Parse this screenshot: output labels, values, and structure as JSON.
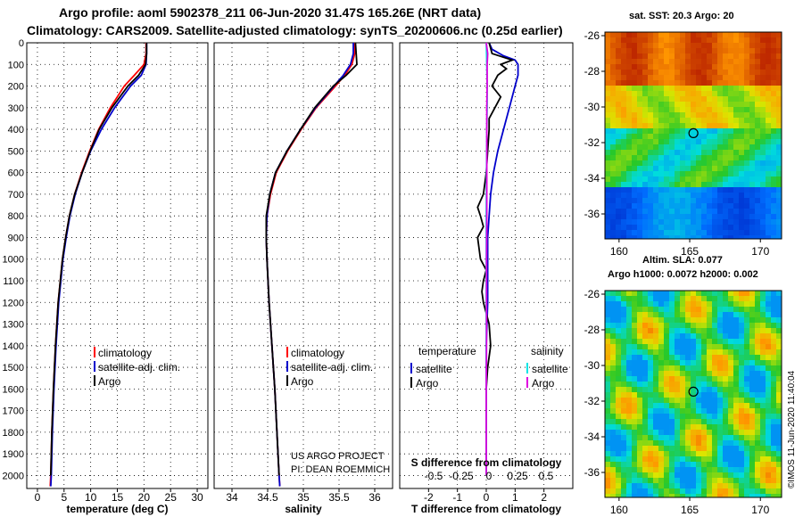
{
  "header": {
    "line1": "Argo profile: aoml 5902378_211 06-Jun-2020 31.47S 165.26E (NRT data)",
    "line2": "Climatology: CARS2009. Satellite-adjusted climatology: synTS_20200606.nc (0.25d earlier)"
  },
  "colors": {
    "climatology": "#ff0000",
    "satellite": "#0000cc",
    "argo": "#000000",
    "sat_salinity": "#00e5e5",
    "argo_salinity": "#e000e0"
  },
  "chart_data": [
    {
      "type": "line",
      "title": "",
      "xlabel": "temperature (deg C)",
      "ylabel": "",
      "xlim": [
        -2,
        32
      ],
      "ylim": [
        2060,
        0
      ],
      "xticks": [
        0,
        5,
        10,
        15,
        20,
        25,
        30
      ],
      "yticks": [
        0,
        100,
        200,
        300,
        400,
        500,
        600,
        700,
        800,
        900,
        1000,
        1100,
        1200,
        1300,
        1400,
        1500,
        1600,
        1700,
        1800,
        1900,
        2000
      ],
      "grid": true,
      "legend": {
        "placement": "bottom-right",
        "items": [
          "climatology",
          "satellite-adj. clim.",
          "Argo"
        ]
      },
      "series": [
        {
          "name": "climatology",
          "color": "#ff0000",
          "depth": [
            0,
            50,
            100,
            150,
            200,
            300,
            400,
            500,
            600,
            700,
            800,
            900,
            1000,
            1200,
            1400,
            1600,
            1800,
            2000,
            2050
          ],
          "values": [
            20.4,
            20.4,
            20.0,
            18.2,
            16.3,
            13.7,
            11.5,
            9.8,
            8.3,
            7.0,
            6.0,
            5.3,
            4.7,
            3.9,
            3.4,
            3.0,
            2.7,
            2.5,
            2.4
          ]
        },
        {
          "name": "satellite-adj. clim.",
          "color": "#0000cc",
          "depth": [
            0,
            50,
            100,
            150,
            200,
            300,
            400,
            500,
            600,
            700,
            800,
            900,
            1000,
            1200,
            1400,
            1600,
            1800,
            2000,
            2050
          ],
          "values": [
            20.5,
            20.5,
            20.4,
            19.5,
            17.5,
            14.5,
            12.0,
            10.0,
            8.4,
            7.1,
            6.1,
            5.4,
            4.8,
            4.0,
            3.5,
            3.1,
            2.8,
            2.6,
            2.5
          ]
        },
        {
          "name": "Argo",
          "color": "#000000",
          "depth": [
            0,
            50,
            100,
            150,
            200,
            300,
            400,
            500,
            600,
            700,
            800,
            900,
            1000,
            1200,
            1400,
            1600,
            1800,
            2000
          ],
          "values": [
            20.5,
            20.5,
            20.3,
            19.0,
            17.0,
            14.0,
            11.6,
            9.9,
            8.4,
            7.0,
            6.0,
            5.3,
            4.7,
            3.9,
            3.4,
            3.0,
            2.7,
            2.5
          ]
        }
      ]
    },
    {
      "type": "line",
      "title": "",
      "xlabel": "salinity",
      "ylabel": "",
      "xlim": [
        33.75,
        36.25
      ],
      "ylim": [
        2060,
        0
      ],
      "xticks": [
        34,
        34.5,
        35,
        35.5,
        36
      ],
      "grid": true,
      "legend": {
        "placement": "bottom-right",
        "items": [
          "climatology",
          "satellite-adj. clim.",
          "Argo"
        ]
      },
      "annotations": [
        "US ARGO PROJECT",
        "PI: DEAN ROEMMICH"
      ],
      "series": [
        {
          "name": "climatology",
          "color": "#ff0000",
          "depth": [
            0,
            50,
            100,
            150,
            200,
            300,
            400,
            500,
            600,
            700,
            800,
            900,
            1000,
            1200,
            1400,
            1600,
            1800,
            2000,
            2050
          ],
          "values": [
            35.72,
            35.72,
            35.68,
            35.58,
            35.45,
            35.18,
            34.97,
            34.78,
            34.62,
            34.54,
            34.49,
            34.48,
            34.49,
            34.52,
            34.56,
            34.6,
            34.63,
            34.66,
            34.67
          ]
        },
        {
          "name": "satellite-adj. clim.",
          "color": "#0000cc",
          "depth": [
            0,
            50,
            100,
            150,
            200,
            300,
            400,
            500,
            600,
            700,
            800,
            900,
            1000,
            1200,
            1400,
            1600,
            1800,
            2000,
            2050
          ],
          "values": [
            35.7,
            35.7,
            35.66,
            35.56,
            35.43,
            35.17,
            34.96,
            34.77,
            34.61,
            34.53,
            34.49,
            34.48,
            34.49,
            34.52,
            34.56,
            34.6,
            34.63,
            34.66,
            34.67
          ]
        },
        {
          "name": "Argo",
          "color": "#000000",
          "depth": [
            0,
            50,
            100,
            150,
            200,
            300,
            400,
            500,
            600,
            700,
            800,
            900,
            1000,
            1200,
            1400,
            1600,
            1800,
            2000
          ],
          "values": [
            35.73,
            35.74,
            35.75,
            35.6,
            35.42,
            35.16,
            34.96,
            34.77,
            34.61,
            34.53,
            34.48,
            34.48,
            34.49,
            34.52,
            34.56,
            34.6,
            34.63,
            34.66
          ]
        }
      ]
    },
    {
      "type": "line",
      "title": "",
      "xlabel": "T difference from climatology",
      "xlabel_top": "S difference from climatology",
      "xlim": [
        -3,
        3
      ],
      "xticks": [
        -2,
        -1,
        0,
        1,
        2
      ],
      "xticks_top": [
        "-0.5",
        "-0.25",
        "0",
        "0.25",
        "0.5"
      ],
      "ylim": [
        2060,
        0
      ],
      "grid": true,
      "legend": {
        "placement": "bottom",
        "temperature_heading": "temperature",
        "salinity_heading": "salinity",
        "items": [
          "satellite",
          "Argo",
          "satellite",
          "Argo"
        ]
      },
      "series": [
        {
          "name": "temperature satellite",
          "color": "#0000cc",
          "depth": [
            0,
            30,
            60,
            80,
            100,
            150,
            200,
            300,
            400,
            500,
            600,
            700,
            800,
            900,
            1000,
            1200,
            1400,
            1600,
            1800,
            2000
          ],
          "values": [
            0.1,
            0.2,
            0.6,
            1.0,
            1.1,
            1.1,
            1.0,
            0.8,
            0.6,
            0.4,
            0.25,
            0.15,
            0.1,
            0.05,
            0.05,
            0.05,
            0.0,
            0.0,
            0.0,
            0.0
          ]
        },
        {
          "name": "temperature Argo",
          "color": "#000000",
          "depth": [
            0,
            50,
            80,
            100,
            120,
            150,
            200,
            250,
            300,
            350,
            400,
            500,
            600,
            700,
            760,
            800,
            850,
            900,
            1000,
            1050,
            1100,
            1150,
            1200,
            1300,
            1400,
            1500,
            1600,
            1700,
            1800,
            1900,
            2000
          ],
          "values": [
            0.1,
            0.2,
            0.9,
            0.5,
            0.7,
            0.4,
            0.2,
            0.5,
            0.3,
            0.1,
            0.1,
            0.05,
            0.0,
            -0.1,
            -0.3,
            -0.2,
            -0.1,
            -0.3,
            -0.2,
            0.0,
            -0.1,
            -0.15,
            -0.1,
            0.1,
            0.15,
            0.05,
            0.0,
            0.0,
            0.0,
            0.0,
            0.0
          ]
        },
        {
          "name": "salinity satellite",
          "color": "#00e5e5",
          "depth": [
            0,
            100,
            200,
            300,
            400,
            600,
            800,
            1000,
            1200,
            1400,
            1600,
            1800,
            2000
          ],
          "values": [
            0.0,
            0.02,
            0.03,
            0.03,
            0.02,
            0.01,
            0.0,
            0.0,
            0.0,
            0.0,
            0.0,
            0.0,
            0.0
          ]
        },
        {
          "name": "salinity Argo",
          "color": "#e000e0",
          "depth": [
            0,
            50,
            100,
            150,
            200,
            300,
            400,
            600,
            800,
            1000,
            1200,
            1400,
            1600,
            1800,
            2000
          ],
          "values": [
            0.0,
            0.05,
            0.03,
            0.03,
            0.03,
            0.02,
            0.02,
            0.02,
            0.02,
            0.01,
            0.01,
            0.01,
            0.0,
            0.0,
            0.0
          ]
        }
      ]
    },
    {
      "type": "heatmap",
      "title": "sat. SST: 20.3 Argo: 20",
      "xlim": [
        159,
        171.5
      ],
      "ylim": [
        -37.4,
        -25.8
      ],
      "xticks": [
        160,
        165,
        170
      ],
      "yticks": [
        -26,
        -28,
        -30,
        -32,
        -34,
        -36
      ],
      "marker": {
        "lon": 165.26,
        "lat": -31.47
      }
    },
    {
      "type": "heatmap",
      "title": "Altim. SLA: 0.077",
      "subtitle": "Argo h1000: 0.0072 h2000: 0.002",
      "xlim": [
        159,
        171.5
      ],
      "ylim": [
        -37.4,
        -25.8
      ],
      "xticks": [
        160,
        165,
        170
      ],
      "yticks": [
        -26,
        -28,
        -30,
        -32,
        -34,
        -36
      ],
      "marker": {
        "lon": 165.26,
        "lat": -31.47
      }
    }
  ],
  "credit": "©IMOS 11-Jun-2020 11:40:04"
}
